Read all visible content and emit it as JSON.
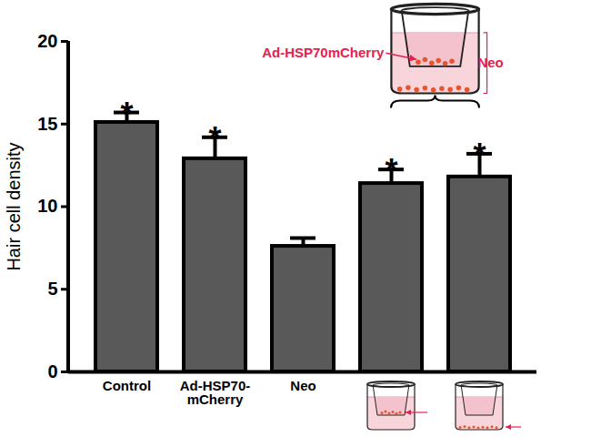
{
  "chart_data": {
    "type": "bar",
    "y_label": "Hair cell density",
    "categories": [
      "Control",
      "Ad-HSP70-mCherry",
      "Neo",
      null,
      null
    ],
    "values": [
      15.1,
      12.9,
      7.6,
      11.4,
      11.8
    ],
    "errors": [
      0.6,
      1.3,
      0.5,
      0.85,
      1.4
    ],
    "color": "#595959",
    "ylim": [
      0,
      20
    ],
    "yticks": [
      0,
      5,
      10,
      15,
      20
    ],
    "significance": [
      "*",
      "*",
      null,
      "*",
      "*"
    ],
    "inset_labels": [
      "Ad-HSP70mCherry",
      "Neo"
    ]
  }
}
